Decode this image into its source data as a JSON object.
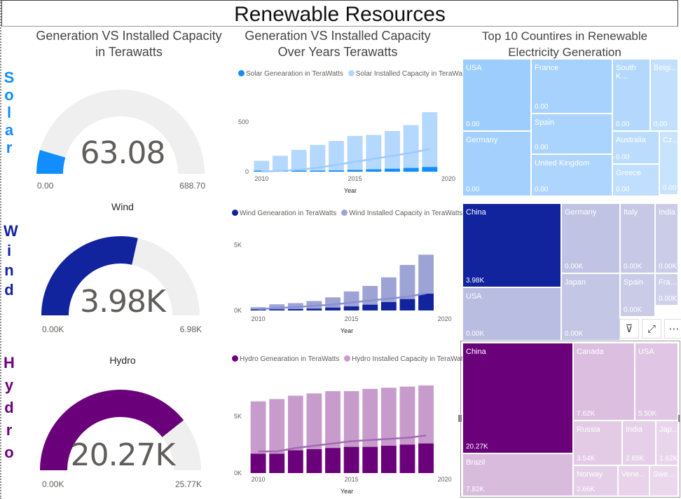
{
  "title": "Renewable Resources",
  "sections": {
    "gauges_title": "Generation VS Installed Capacity in Terawatts",
    "trend_title": "Generation VS Installed Capacity Over Years Terawatts",
    "treemap_title": "Top 10 Countires in Renewable Electricity Generation"
  },
  "side_labels": {
    "solar": [
      "S",
      "o",
      "l",
      "a",
      "r"
    ],
    "wind": [
      "W",
      "i",
      "n",
      "d"
    ],
    "hydro": [
      "H",
      "y",
      "d",
      "r",
      "o"
    ]
  },
  "gauges": [
    {
      "key": "solar",
      "title": "",
      "value": 63.08,
      "display": "63.08",
      "min": 0,
      "max": 688.7,
      "min_label": "0.00",
      "max_label": "688.70",
      "color": "#118dff",
      "track": "#f0efef"
    },
    {
      "key": "wind",
      "title": "Wind",
      "value": 3.98,
      "display": "3.98K",
      "min": 0,
      "max": 6.98,
      "min_label": "0.00K",
      "max_label": "6.98K",
      "color": "#12239e",
      "track": "#f0efef"
    },
    {
      "key": "hydro",
      "title": "Hydro",
      "value": 20.27,
      "display": "20.27K",
      "min": 0,
      "max": 25.77,
      "min_label": "0.00K",
      "max_label": "25.77K",
      "color": "#6b007b",
      "track": "#f0efef"
    }
  ],
  "chart_data": [
    {
      "type": "bar",
      "id": "solar",
      "legend": [
        "Solar Genearation in TeraWatts",
        "Solar Installed Capacity in TeraWatts"
      ],
      "series_colors": [
        "#118dff",
        "#b4d8ff"
      ],
      "line_color": "#9ecbfb",
      "x": [
        2010,
        2011,
        2012,
        2013,
        2014,
        2015,
        2016,
        2017,
        2018,
        2019
      ],
      "series": [
        {
          "name": "Solar Genearation in TeraWatts",
          "values": [
            2,
            4,
            6,
            9,
            13,
            18,
            24,
            30,
            38,
            47
          ]
        },
        {
          "name": "Solar Installed Capacity in TeraWatts",
          "values": [
            110,
            160,
            220,
            270,
            310,
            360,
            370,
            410,
            470,
            600
          ]
        }
      ],
      "line": [
        2,
        8,
        20,
        40,
        70,
        100,
        130,
        160,
        190,
        230
      ],
      "xlabel": "Year",
      "xticks": [
        2010,
        2015,
        2020
      ],
      "yticks": [
        0,
        500
      ],
      "ytick_labels": [
        "0",
        "500"
      ],
      "ylim": [
        0,
        650
      ]
    },
    {
      "type": "bar",
      "id": "wind",
      "legend": [
        "Wind Genearation in TeraWatts",
        "Wind Installed Capacity in TeraWatts"
      ],
      "series_colors": [
        "#12239e",
        "#9ea3d6"
      ],
      "line_color": "#8a8fd0",
      "x": [
        2010,
        2011,
        2012,
        2013,
        2014,
        2015,
        2016,
        2017,
        2018,
        2019
      ],
      "series": [
        {
          "name": "Wind Genearation in TeraWatts",
          "values": [
            60,
            90,
            110,
            140,
            220,
            310,
            440,
            640,
            870,
            1280
          ]
        },
        {
          "name": "Wind Installed Capacity in TeraWatts",
          "values": [
            250,
            470,
            560,
            720,
            1000,
            1450,
            1870,
            2520,
            3470,
            4250
          ]
        }
      ],
      "line": [
        100,
        180,
        260,
        360,
        450,
        600,
        760,
        900,
        1050,
        1300
      ],
      "xlabel": "Year",
      "xticks": [
        2010,
        2015,
        2020
      ],
      "yticks": [
        0,
        5000
      ],
      "ytick_labels": [
        "0K",
        "5K"
      ],
      "ylim": [
        0,
        5500
      ]
    },
    {
      "type": "bar",
      "id": "hydro",
      "legend": [
        "Hydro Genearation in TeraWatts",
        "Hydro Installed Capacity in TeraWatts"
      ],
      "series_colors": [
        "#6b007b",
        "#c79ccc"
      ],
      "line_color": "#a36ab0",
      "x": [
        2010,
        2011,
        2012,
        2013,
        2014,
        2015,
        2016,
        2017,
        2018,
        2019
      ],
      "series": [
        {
          "name": "Hydro Genearation in TeraWatts",
          "values": [
            1700,
            1700,
            2000,
            2100,
            2200,
            2300,
            2300,
            2400,
            2500,
            2600
          ]
        },
        {
          "name": "Hydro Installed Capacity in TeraWatts",
          "values": [
            6300,
            6500,
            6800,
            7000,
            7200,
            7200,
            7400,
            7500,
            7600,
            7700
          ]
        }
      ],
      "line": [
        1900,
        1900,
        2200,
        2400,
        2600,
        2800,
        2900,
        3000,
        3100,
        3300
      ],
      "xlabel": "Year",
      "xticks": [
        2010,
        2015,
        2020
      ],
      "yticks": [
        0,
        5000
      ],
      "ytick_labels": [
        "0K",
        "5K"
      ],
      "ylim": [
        0,
        8500
      ]
    }
  ],
  "treemaps": [
    {
      "key": "solar",
      "cells": [
        {
          "name": "USA",
          "value": "0.00",
          "bg": "#9dcdfd",
          "fg": "#ffffff"
        },
        {
          "name": "France",
          "value": "0.00",
          "bg": "#a6d2fd",
          "fg": "#ffffff"
        },
        {
          "name": "South K...",
          "value": "0.00",
          "bg": "#b4d8fd",
          "fg": "#ffffff"
        },
        {
          "name": "Belgi...",
          "value": "0.00",
          "bg": "#c2e0fe",
          "fg": "#ffffff"
        },
        {
          "name": "Spain",
          "value": "0.00",
          "bg": "#aad4fd",
          "fg": "#ffffff"
        },
        {
          "name": "Australia",
          "value": "0.00",
          "bg": "#bcdcfd",
          "fg": "#ffffff"
        },
        {
          "name": "Cz...",
          "value": "0.00",
          "bg": "#c8e3fe",
          "fg": "#ffffff"
        },
        {
          "name": "Germany",
          "value": "0.00",
          "bg": "#a3d0fd",
          "fg": "#ffffff"
        },
        {
          "name": "United Kingdom",
          "value": "0.00",
          "bg": "#aed5fd",
          "fg": "#ffffff"
        },
        {
          "name": "Greece",
          "value": "0.00",
          "bg": "#c0defe",
          "fg": "#ffffff"
        }
      ]
    },
    {
      "key": "wind",
      "cells": [
        {
          "name": "China",
          "value": "3.98K",
          "bg": "#12239e",
          "fg": "#ffffff"
        },
        {
          "name": "Germany",
          "value": "0.00K",
          "bg": "#c0c3e4",
          "fg": "#ffffff"
        },
        {
          "name": "Italy",
          "value": "0.00K",
          "bg": "#c6c8e6",
          "fg": "#ffffff"
        },
        {
          "name": "India",
          "value": "0.00K",
          "bg": "#cbcde8",
          "fg": "#ffffff"
        },
        {
          "name": "USA",
          "value": "0.00K",
          "bg": "#b9bde1",
          "fg": "#ffffff"
        },
        {
          "name": "Japan",
          "value": "0.00K",
          "bg": "#c3c6e5",
          "fg": "#ffffff"
        },
        {
          "name": "Spain",
          "value": "0.00K",
          "bg": "#c9cbe7",
          "fg": "#ffffff"
        },
        {
          "name": "Fra...",
          "value": "0.00K",
          "bg": "#cfd1ea",
          "fg": "#ffffff"
        }
      ],
      "toolbar": [
        "filter-icon",
        "focus-mode-icon",
        "more-options-icon"
      ],
      "toolbar_glyphs": [
        "⊽",
        "⤢",
        "⋯"
      ]
    },
    {
      "key": "hydro",
      "cells": [
        {
          "name": "China",
          "value": "20.27K",
          "bg": "#6b007b",
          "fg": "#ffffff"
        },
        {
          "name": "Canada",
          "value": "7.62K",
          "bg": "#dcbfe0",
          "fg": "#ffffff"
        },
        {
          "name": "USA",
          "value": "5.50K",
          "bg": "#e0c6e4",
          "fg": "#ffffff"
        },
        {
          "name": "Brazil",
          "value": "7.82K",
          "bg": "#d9bbde",
          "fg": "#ffffff"
        },
        {
          "name": "Russia",
          "value": "3.54K",
          "bg": "#e3cbe6",
          "fg": "#ffffff"
        },
        {
          "name": "India",
          "value": "2.65K",
          "bg": "#e6d0e9",
          "fg": "#ffffff"
        },
        {
          "name": "Jap...",
          "value": "1.62K",
          "bg": "#e9d5eb",
          "fg": "#ffffff"
        },
        {
          "name": "Norway",
          "value": "2.66K",
          "bg": "#e5cee8",
          "fg": "#ffffff"
        },
        {
          "name": "Vene...",
          "value": "",
          "bg": "#e8d3ea",
          "fg": "#ffffff"
        },
        {
          "name": "Swe...",
          "value": "",
          "bg": "#ebd8ed",
          "fg": "#ffffff"
        }
      ]
    }
  ]
}
